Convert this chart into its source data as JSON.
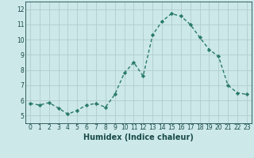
{
  "x": [
    0,
    1,
    2,
    3,
    4,
    5,
    6,
    7,
    8,
    9,
    10,
    11,
    12,
    13,
    14,
    15,
    16,
    17,
    18,
    19,
    20,
    21,
    22,
    23
  ],
  "y": [
    5.8,
    5.7,
    5.85,
    5.5,
    5.1,
    5.35,
    5.7,
    5.8,
    5.55,
    6.4,
    7.8,
    8.5,
    7.6,
    10.3,
    11.2,
    11.7,
    11.55,
    11.0,
    10.15,
    9.35,
    8.9,
    7.0,
    6.5,
    6.4
  ],
  "line_color": "#2a7a6a",
  "marker": "D",
  "markersize": 2.2,
  "linewidth": 1.0,
  "background_color": "#cce8e8",
  "grid_color": "#b0cccc",
  "xlabel": "Humidex (Indice chaleur)",
  "xlim": [
    -0.5,
    23.5
  ],
  "ylim": [
    4.5,
    12.5
  ],
  "yticks": [
    5,
    6,
    7,
    8,
    9,
    10,
    11,
    12
  ],
  "xticks": [
    0,
    1,
    2,
    3,
    4,
    5,
    6,
    7,
    8,
    9,
    10,
    11,
    12,
    13,
    14,
    15,
    16,
    17,
    18,
    19,
    20,
    21,
    22,
    23
  ],
  "tick_label_fontsize": 5.5,
  "xlabel_fontsize": 7.0,
  "tick_color": "#1a4a4a",
  "spine_color": "#1a4a4a"
}
